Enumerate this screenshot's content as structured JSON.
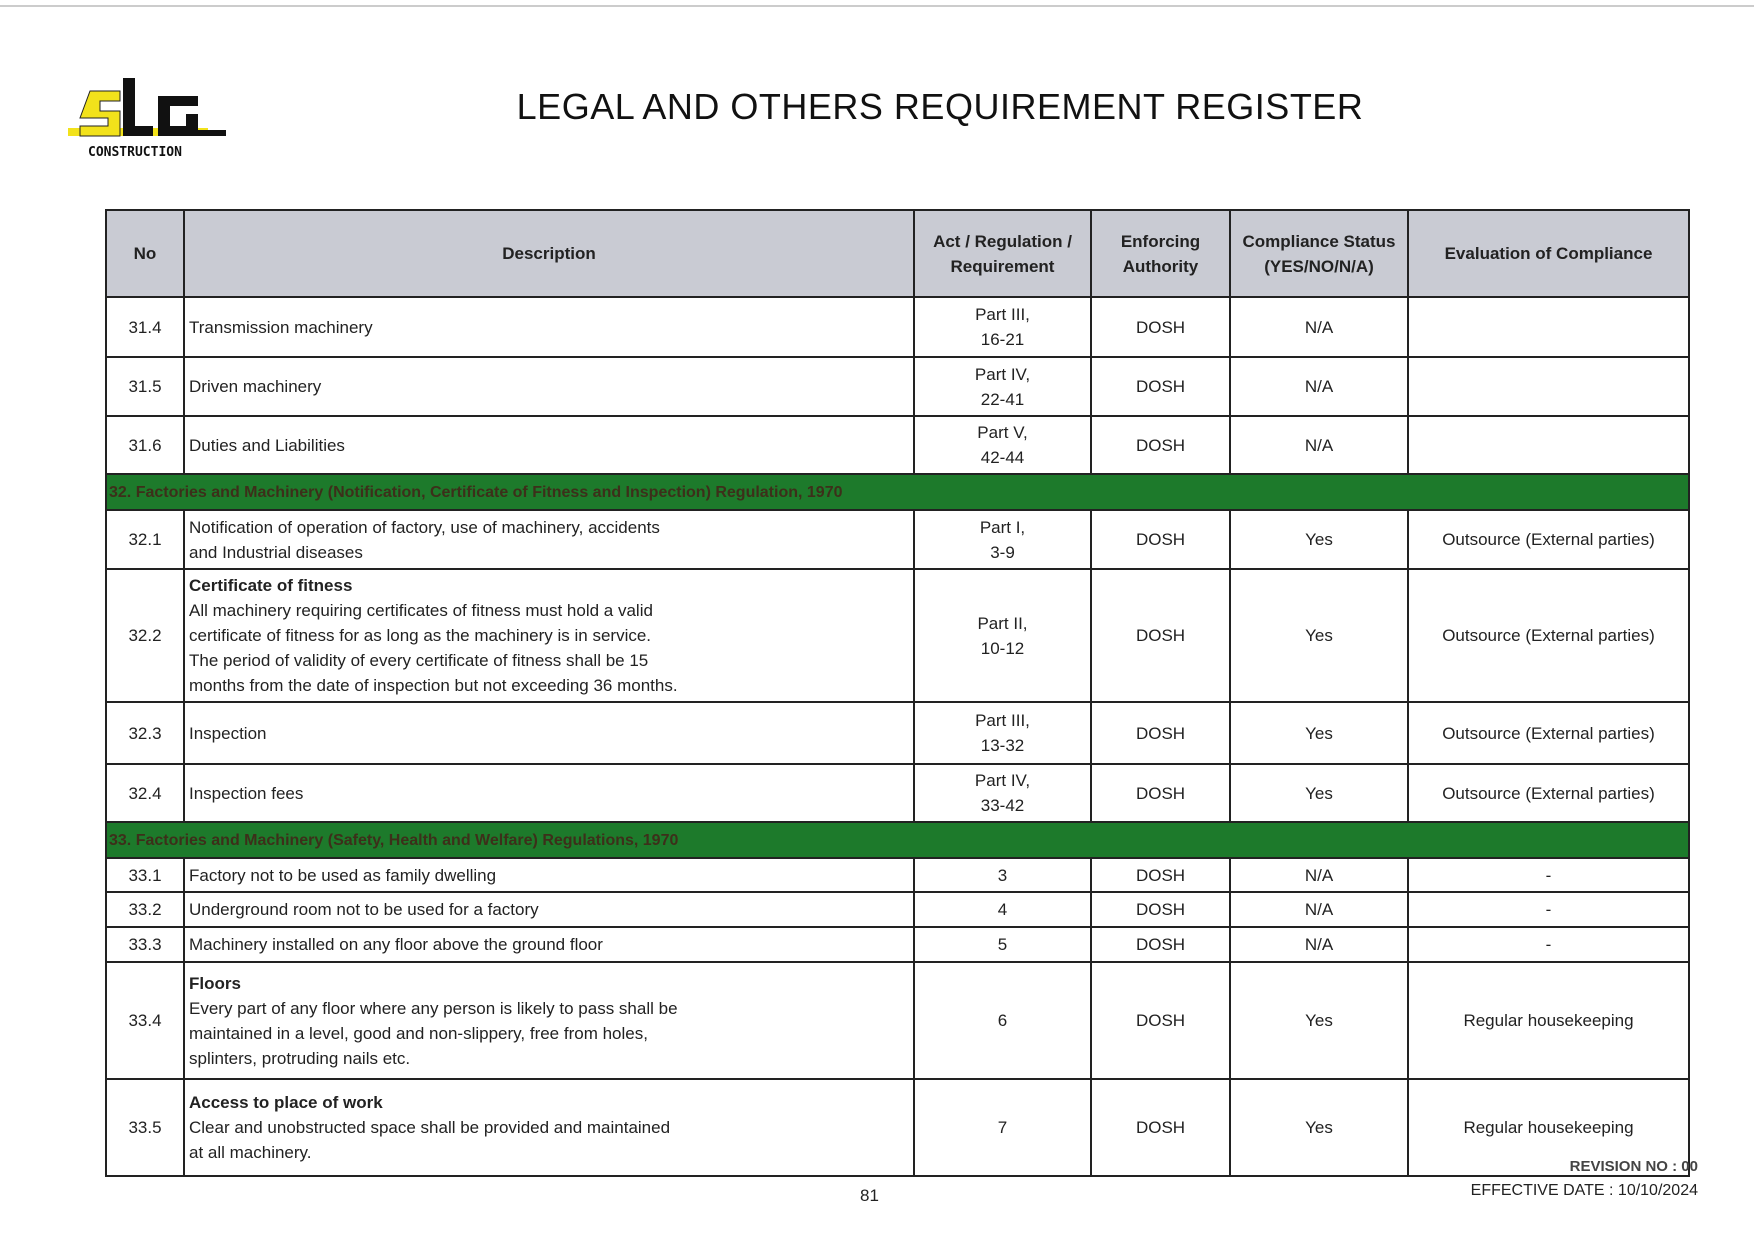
{
  "header": {
    "logo_text": "CONSTRUCTION",
    "logo_letters": "SLG",
    "title": "LEGAL AND OTHERS REQUIREMENT REGISTER"
  },
  "table": {
    "columns": [
      "No",
      "Description",
      "Act / Regulation /\nRequirement",
      "Enforcing\nAuthority",
      "Compliance Status\n(YES/NO/N/A)",
      "Evaluation of Compliance"
    ],
    "rows": [
      {
        "no": "31.4",
        "title": "",
        "desc": "Transmission machinery",
        "act": "Part III,\n16-21",
        "auth": "DOSH",
        "status": "N/A",
        "eval": ""
      },
      {
        "no": "31.5",
        "title": "",
        "desc": "Driven machinery",
        "act": "Part IV,\n22-41",
        "auth": "DOSH",
        "status": "N/A",
        "eval": ""
      },
      {
        "no": "31.6",
        "title": "",
        "desc": "Duties and Liabilities",
        "act": "Part V,\n42-44",
        "auth": "DOSH",
        "status": "N/A",
        "eval": ""
      },
      {
        "section": "32. Factories and Machinery (Notification, Certificate of Fitness and Inspection) Regulation, 1970"
      },
      {
        "no": "32.1",
        "title": "",
        "desc": "Notification of operation of factory, use of machinery, accidents\nand Industrial diseases",
        "act": "Part I,\n3-9",
        "auth": "DOSH",
        "status": "Yes",
        "eval": "Outsource (External parties)"
      },
      {
        "no": "32.2",
        "title": "Certificate of fitness",
        "desc": "All machinery requiring certificates of fitness must hold a valid\ncertificate of fitness for as long as the machinery is in service.\nThe period of validity of every certificate of fitness shall be 15\nmonths from the date of inspection but not exceeding 36 months.",
        "act": "Part II,\n10-12",
        "auth": "DOSH",
        "status": "Yes",
        "eval": "Outsource (External parties)"
      },
      {
        "no": "32.3",
        "title": "",
        "desc": "Inspection",
        "act": "Part III,\n13-32",
        "auth": "DOSH",
        "status": "Yes",
        "eval": "Outsource (External parties)"
      },
      {
        "no": "32.4",
        "title": "",
        "desc": "Inspection fees",
        "act": "Part IV,\n33-42",
        "auth": "DOSH",
        "status": "Yes",
        "eval": "Outsource (External parties)"
      },
      {
        "section": "33. Factories and Machinery (Safety, Health and Welfare) Regulations, 1970"
      },
      {
        "no": "33.1",
        "title": "",
        "desc": "Factory not to be used as family dwelling",
        "act": "3",
        "auth": "DOSH",
        "status": "N/A",
        "eval": "-"
      },
      {
        "no": "33.2",
        "title": "",
        "desc": "Underground room not to be used for a factory",
        "act": "4",
        "auth": "DOSH",
        "status": "N/A",
        "eval": "-"
      },
      {
        "no": "33.3",
        "title": "",
        "desc": "Machinery installed on any floor above the ground floor",
        "act": "5",
        "auth": "DOSH",
        "status": "N/A",
        "eval": "-"
      },
      {
        "no": "33.4",
        "title": "Floors",
        "desc": "Every part of any floor where any person is likely to pass shall be\nmaintained in a level, good and non-slippery, free from holes,\nsplinters, protruding nails etc.",
        "act": "6",
        "auth": "DOSH",
        "status": "Yes",
        "eval": "Regular housekeeping"
      },
      {
        "no": "33.5",
        "title": "Access to place of work",
        "desc": "Clear and unobstructed space shall be provided and maintained\nat all machinery.",
        "act": "7",
        "auth": "DOSH",
        "status": "Yes",
        "eval": "Regular housekeeping"
      }
    ]
  },
  "footer": {
    "page_number": "81",
    "revision": "REVISION NO : 00",
    "effective_date": "EFFECTIVE DATE : 10/10/2024"
  },
  "colors": {
    "header_bg": "#c9cbd3",
    "section_bg": "#1d7a2b",
    "logo_yellow": "#f2e21b"
  }
}
